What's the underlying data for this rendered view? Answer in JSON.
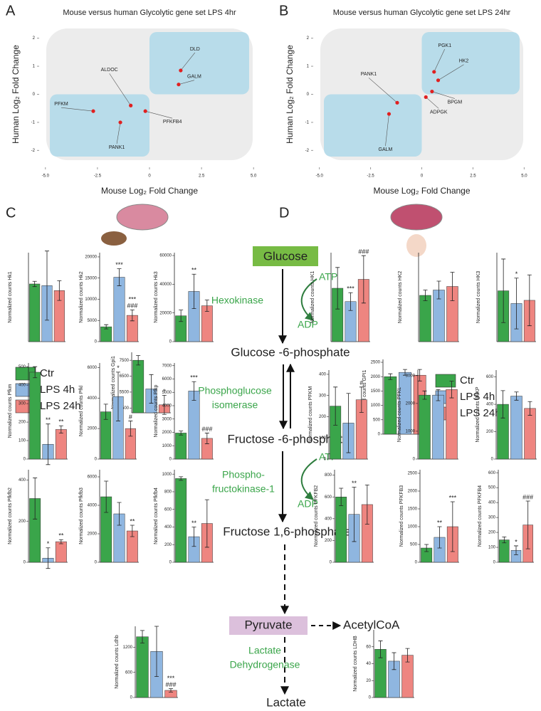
{
  "panel_labels": [
    "A",
    "B",
    "C",
    "D"
  ],
  "groups": {
    "names": [
      "Ctr",
      "LPS 4h",
      "LPS 24h"
    ],
    "colors": [
      "#3aa54a",
      "#8fb6e0",
      "#ee8580"
    ]
  },
  "pathway": {
    "glucose": "Glucose",
    "hexokinase": "Hexokinase",
    "atp1": "ATP",
    "adp1": "ADP",
    "g6p": "Glucose -6-phosphate",
    "pgi1": "Phosphoglucose",
    "pgi2": "isomerase",
    "f6p": "Fructose -6-phosphate",
    "pfk1": "Phospho-",
    "pfk2": "fructokinase-1",
    "atp2": "ATP",
    "adp2": "ADP",
    "f16p": "Fructose 1,6-phosphate",
    "pyruvate": "Pyruvate",
    "acetylcoa": "AcetylCoA",
    "ldh1": "Lactate",
    "ldh2": "Dehydrogenase",
    "lactate": "Lactate"
  },
  "chart_data": [
    {
      "type": "scatter",
      "title": "Mouse versus human Glycolytic gene set LPS 4hr",
      "xlabel": "Mouse Log₂ Fold Change",
      "ylabel": "Human Log₂ Fold Change",
      "xlim": [
        -5.3,
        5.3
      ],
      "ylim": [
        -2.6,
        2.6
      ],
      "xticks": [
        {
          "value": -5,
          "label": "-5.0"
        },
        -2.5,
        0,
        2.5,
        {
          "value": 5,
          "label": "5.0"
        }
      ],
      "yticks": [
        -2,
        -1,
        0,
        1,
        2
      ],
      "color": "#e02020",
      "points": {
        "labels": [
          "DLD",
          "GALM",
          "ALDOC",
          "PFKM",
          "PANK1",
          "PFKFB4"
        ],
        "x": [
          1.5,
          1.4,
          -0.9,
          -2.7,
          -1.4,
          -0.2
        ],
        "y": [
          0.85,
          0.35,
          -0.4,
          -0.6,
          -1.0,
          -0.6
        ]
      }
    },
    {
      "type": "scatter",
      "title": "Mouse versus human Glycolytic gene set LPS 24hr",
      "xlabel": "Mouse Log₂ Fold Change",
      "ylabel": "Human Log₂ Fold Change",
      "xlim": [
        -5.3,
        5.3
      ],
      "ylim": [
        -2.6,
        2.6
      ],
      "xticks": [
        {
          "value": -5,
          "label": "-5.0"
        },
        -2.5,
        0,
        2.5,
        {
          "value": 5,
          "label": "5.0"
        }
      ],
      "yticks": [
        -2,
        -1,
        0,
        1,
        2
      ],
      "color": "#e02020",
      "points": {
        "labels": [
          "PGK1",
          "HK2",
          "PANK1",
          "BPGM",
          "ADPGK",
          "GALM"
        ],
        "x": [
          0.6,
          0.8,
          -1.2,
          0.5,
          0.2,
          -1.6
        ],
        "y": [
          0.8,
          0.5,
          -0.3,
          0.1,
          -0.1,
          -0.7
        ]
      }
    },
    {
      "type": "bar",
      "ylabel": "Normalized counts Hk1",
      "ylim": [
        0,
        2700
      ],
      "yticks": [],
      "values": [
        1750,
        1700,
        1550
      ],
      "errors": [
        80,
        1050,
        300
      ],
      "annotations": []
    },
    {
      "type": "bar",
      "ylabel": "Normalized counts Hk2",
      "ylim": [
        0,
        21000
      ],
      "yticks": [
        0,
        5000,
        10000,
        15000,
        20000
      ],
      "values": [
        3500,
        15200,
        6200
      ],
      "errors": [
        500,
        2000,
        1300
      ],
      "annotations": [
        {
          "index": 1,
          "text": "***"
        },
        {
          "index": 2,
          "text": "###"
        },
        {
          "index": 2,
          "text": "***"
        }
      ]
    },
    {
      "type": "bar",
      "ylabel": "Normalized counts Hk3",
      "ylim": [
        0,
        62000
      ],
      "yticks": [
        0,
        20000,
        40000,
        60000
      ],
      "values": [
        18000,
        35000,
        25000
      ],
      "errors": [
        4000,
        12000,
        4000
      ],
      "annotations": [
        {
          "index": 1,
          "text": "**"
        }
      ]
    },
    {
      "type": "bar",
      "ylabel": "Normalized counts Gpi1",
      "ylim": [
        4200,
        8000
      ],
      "yticks": [
        4500,
        5500,
        6500,
        7500
      ],
      "values": [
        7500,
        5700,
        4700
      ],
      "errors": [
        300,
        900,
        600
      ],
      "annotations": [
        {
          "index": 2,
          "text": "*"
        }
      ]
    },
    {
      "type": "bar",
      "ylabel": "Normalized counts Pfkm",
      "ylim": [
        0,
        520
      ],
      "yticks": [
        0,
        100,
        200,
        300,
        400,
        500
      ],
      "values": [
        470,
        80,
        160
      ],
      "errors": [
        30,
        110,
        20
      ],
      "annotations": [
        {
          "index": 1,
          "text": "**"
        },
        {
          "index": 2,
          "text": "**"
        }
      ]
    },
    {
      "type": "bar",
      "ylabel": "Normalized counts Pfkl",
      "ylim": [
        0,
        6300
      ],
      "yticks": [
        0,
        2000,
        4000,
        6000
      ],
      "values": [
        3100,
        4100,
        2000
      ],
      "errors": [
        500,
        1600,
        500
      ],
      "annotations": [
        {
          "index": 1,
          "text": "*"
        },
        {
          "index": 2,
          "text": "#"
        }
      ]
    },
    {
      "type": "bar",
      "ylabel": "Normalized counts Pfkp",
      "ylim": [
        0,
        7200
      ],
      "yticks": [
        0,
        1000,
        2000,
        3000,
        4000,
        5000,
        6000,
        7000
      ],
      "values": [
        1950,
        5100,
        1550
      ],
      "errors": [
        150,
        700,
        400
      ],
      "annotations": [
        {
          "index": 1,
          "text": "***"
        },
        {
          "index": 2,
          "text": "###"
        }
      ]
    },
    {
      "type": "bar",
      "ylabel": "Normalized counts Pfkfb2",
      "ylim": [
        0,
        450
      ],
      "yticks": [
        0,
        200,
        400
      ],
      "values": [
        310,
        20,
        100
      ],
      "errors": [
        100,
        50,
        10
      ],
      "annotations": [
        {
          "index": 1,
          "text": "*"
        },
        {
          "index": 2,
          "text": "**"
        }
      ]
    },
    {
      "type": "bar",
      "ylabel": "Normalized counts Pfkfb3",
      "ylim": [
        0,
        6500
      ],
      "yticks": [
        0,
        2000,
        4000,
        6000
      ],
      "values": [
        4600,
        3400,
        2200
      ],
      "errors": [
        1100,
        800,
        400
      ],
      "annotations": [
        {
          "index": 2,
          "text": "**"
        }
      ]
    },
    {
      "type": "bar",
      "ylabel": "Normalized counts Pfkfb4",
      "ylim": [
        0,
        1050
      ],
      "yticks": [
        0,
        200,
        400,
        600,
        800,
        1000
      ],
      "values": [
        950,
        290,
        440
      ],
      "errors": [
        20,
        110,
        270
      ],
      "annotations": [
        {
          "index": 1,
          "text": "**"
        }
      ]
    },
    {
      "type": "bar",
      "ylabel": "Normalized counts Ldhb",
      "ylim": [
        0,
        1700
      ],
      "yticks": [
        0,
        600,
        1200
      ],
      "values": [
        1450,
        1100,
        170
      ],
      "errors": [
        150,
        600,
        40
      ],
      "annotations": [
        {
          "index": 2,
          "text": "###"
        },
        {
          "index": 2,
          "text": "***"
        }
      ]
    },
    {
      "type": "bar",
      "ylabel": "Normalized counts HK1",
      "ylim": [
        0,
        3000
      ],
      "yticks": [],
      "values": [
        1800,
        1350,
        2100
      ],
      "errors": [
        700,
        300,
        800
      ],
      "annotations": [
        {
          "index": 1,
          "text": "***"
        },
        {
          "index": 2,
          "text": "###"
        }
      ]
    },
    {
      "type": "bar",
      "ylabel": "Normalized counts HK2",
      "ylim": [
        0,
        5000
      ],
      "yticks": [],
      "values": [
        2600,
        2900,
        3100
      ],
      "errors": [
        300,
        500,
        800
      ],
      "annotations": []
    },
    {
      "type": "bar",
      "ylabel": "Normalized counts HK3",
      "ylim": [
        0,
        1400
      ],
      "yticks": [],
      "values": [
        800,
        600,
        650
      ],
      "errors": [
        500,
        400,
        400
      ],
      "annotations": [
        {
          "index": 1,
          "text": "*"
        }
      ]
    },
    {
      "type": "bar",
      "ylabel": "Normalized counts GPI1",
      "ylim": [
        0,
        2600
      ],
      "yticks": [
        0,
        500,
        1000,
        1500,
        2000,
        2500
      ],
      "values": [
        2000,
        2150,
        2050
      ],
      "errors": [
        100,
        100,
        200
      ],
      "annotations": []
    },
    {
      "type": "bar",
      "ylabel": "Normalized counts PFKM",
      "ylim": [
        0,
        420
      ],
      "yticks": [
        0,
        100,
        200,
        300,
        400
      ],
      "values": [
        250,
        170,
        280
      ],
      "errors": [
        90,
        140,
        60
      ],
      "annotations": [
        {
          "index": 2,
          "text": "#"
        }
      ]
    },
    {
      "type": "bar",
      "ylabel": "Normalized counts PFKL",
      "ylim": [
        0,
        3200
      ],
      "yticks": [
        0,
        1000,
        2000,
        3000
      ],
      "values": [
        2300,
        2300,
        2500
      ],
      "errors": [
        150,
        200,
        300
      ],
      "annotations": []
    },
    {
      "type": "bar",
      "ylabel": "Normalized counts PFKP",
      "ylim": [
        0,
        650
      ],
      "yticks": [
        0,
        200,
        400,
        600
      ],
      "values": [
        400,
        460,
        370
      ],
      "errors": [
        100,
        30,
        50
      ],
      "annotations": []
    },
    {
      "type": "bar",
      "ylabel": "Normalized counts PFKFB2",
      "ylim": [
        0,
        850
      ],
      "yticks": [
        0,
        200,
        400,
        600,
        800
      ],
      "values": [
        600,
        440,
        530
      ],
      "errors": [
        80,
        250,
        180
      ],
      "annotations": [
        {
          "index": 1,
          "text": "**"
        }
      ]
    },
    {
      "type": "bar",
      "ylabel": "Normalized counts PFKFB3",
      "ylim": [
        0,
        2600
      ],
      "yticks": [
        0,
        500,
        1000,
        1500,
        2000,
        2500
      ],
      "values": [
        400,
        700,
        1000
      ],
      "errors": [
        100,
        300,
        700
      ],
      "annotations": [
        {
          "index": 1,
          "text": "**"
        },
        {
          "index": 2,
          "text": "***"
        }
      ]
    },
    {
      "type": "bar",
      "ylabel": "Normalized counts PFKFB4",
      "ylim": [
        0,
        620
      ],
      "yticks": [
        0,
        100,
        200,
        300,
        400,
        500,
        600
      ],
      "values": [
        150,
        80,
        250
      ],
      "errors": [
        20,
        30,
        160
      ],
      "annotations": [
        {
          "index": 1,
          "text": "*"
        },
        {
          "index": 2,
          "text": "###"
        }
      ]
    },
    {
      "type": "bar",
      "ylabel": "Normalized counts LDHB",
      "ylim": [
        0,
        80
      ],
      "yticks": [
        0,
        20,
        40,
        60
      ],
      "values": [
        57,
        43,
        50
      ],
      "errors": [
        10,
        10,
        8
      ],
      "annotations": []
    }
  ]
}
